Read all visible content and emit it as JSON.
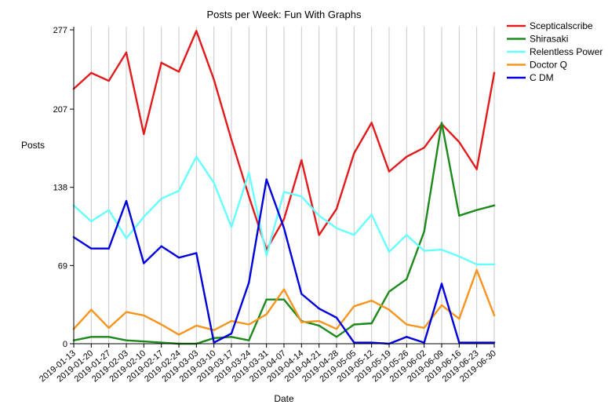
{
  "chart_data": {
    "type": "line",
    "title": "Posts per Week: Fun With Graphs",
    "xlabel": "Date",
    "ylabel": "Posts",
    "ylim": [
      0,
      277
    ],
    "yticks": [
      0,
      69,
      138,
      207,
      277
    ],
    "grid": "vertical",
    "legend_position": "top-right",
    "categories": [
      "2019-01-13",
      "2019-01-20",
      "2019-01-27",
      "2019-02-03",
      "2019-02-10",
      "2019-02-17",
      "2019-02-24",
      "2019-03-03",
      "2019-03-10",
      "2019-03-17",
      "2019-03-24",
      "2019-03-31",
      "2019-04-07",
      "2019-04-14",
      "2019-04-21",
      "2019-04-28",
      "2019-05-05",
      "2019-05-12",
      "2019-05-19",
      "2019-05-26",
      "2019-06-02",
      "2019-06-09",
      "2019-06-16",
      "2019-06-23",
      "2019-06-30"
    ],
    "series": [
      {
        "name": "Scepticalscribe",
        "color": "#e31a1c",
        "values": [
          225,
          239,
          232,
          257,
          185,
          248,
          240,
          276,
          233,
          180,
          130,
          83,
          110,
          162,
          96,
          119,
          168,
          195,
          152,
          165,
          173,
          194,
          178,
          154,
          239
        ]
      },
      {
        "name": "Shirasaki",
        "color": "#1b8a1b",
        "values": [
          3,
          6,
          6,
          3,
          2,
          1,
          0,
          0,
          5,
          6,
          3,
          39,
          39,
          20,
          16,
          6,
          17,
          18,
          46,
          57,
          99,
          195,
          113,
          118,
          122
        ]
      },
      {
        "name": "Relentless Power",
        "color": "#66ffff",
        "values": [
          122,
          108,
          118,
          93,
          112,
          128,
          135,
          165,
          142,
          103,
          151,
          78,
          134,
          130,
          113,
          102,
          96,
          114,
          81,
          96,
          82,
          83,
          77,
          70,
          70
        ]
      },
      {
        "name": "Doctor Q",
        "color": "#f7941d",
        "values": [
          13,
          30,
          14,
          28,
          25,
          17,
          8,
          16,
          12,
          20,
          17,
          26,
          48,
          19,
          20,
          13,
          33,
          38,
          30,
          17,
          14,
          34,
          22,
          65,
          25
        ]
      },
      {
        "name": "C DM",
        "color": "#0000dd",
        "values": [
          94,
          84,
          84,
          126,
          71,
          86,
          76,
          80,
          1,
          9,
          54,
          145,
          102,
          44,
          31,
          23,
          1,
          1,
          0,
          6,
          1,
          53,
          1,
          1,
          1
        ]
      }
    ]
  }
}
